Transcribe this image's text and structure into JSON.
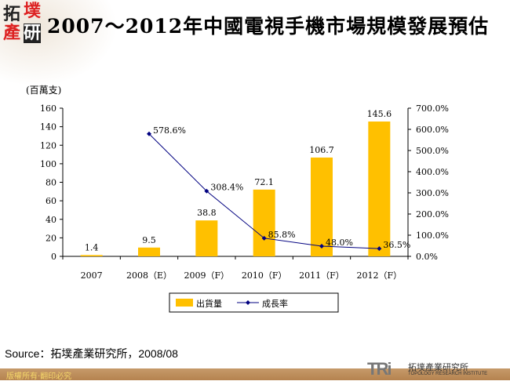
{
  "logo": {
    "chars": [
      "拓",
      "墣",
      "產",
      "研"
    ]
  },
  "title": "2007～2012年中國電視手機市場規模發展預估",
  "unit": "(百萬支)",
  "chart_data": {
    "type": "bar+line",
    "categories": [
      "2007",
      "2008（E）",
      "2009（F）",
      "2010（F）",
      "2011（F）",
      "2012（F）"
    ],
    "series": [
      {
        "name": "出貨量",
        "type": "bar",
        "axis": "left",
        "values": [
          1.4,
          9.5,
          38.8,
          72.1,
          106.7,
          145.6
        ],
        "labels": [
          "1.4",
          "9.5",
          "38.8",
          "72.1",
          "106.7",
          "145.6"
        ],
        "color": "#ffc000"
      },
      {
        "name": "成長率",
        "type": "line",
        "axis": "right",
        "values": [
          null,
          578.6,
          308.4,
          85.8,
          48.0,
          36.5
        ],
        "labels": [
          "",
          "578.6%",
          "308.4%",
          "85.8%",
          "48.0%",
          "36.5%"
        ],
        "color": "#000080"
      }
    ],
    "ylim": [
      0,
      160
    ],
    "yticks": [
      0,
      20,
      40,
      60,
      80,
      100,
      120,
      140,
      160
    ],
    "y2lim": [
      0,
      700
    ],
    "y2ticks": [
      "0.0%",
      "100.0%",
      "200.0%",
      "300.0%",
      "400.0%",
      "500.0%",
      "600.0%",
      "700.0%"
    ],
    "legend": "bottom",
    "grid": false
  },
  "source": "Source：拓墣產業研究所，2008/08",
  "footer": {
    "copyright": "版權所有‧翻印必究",
    "brand": "TRi",
    "brand_cn": "拓墣產業研究所",
    "brand_en": "TOPOLOGY RESEARCH INSTITUTE"
  }
}
